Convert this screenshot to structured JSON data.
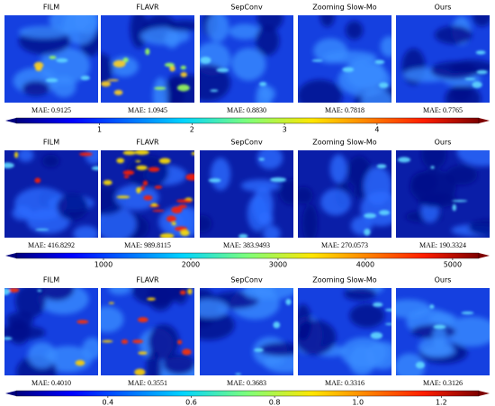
{
  "rows": [
    {
      "panels": [
        {
          "title": "FILM",
          "mae": "MAE: 0.9125"
        },
        {
          "title": "FLAVR",
          "mae": "MAE: 1.0945"
        },
        {
          "title": "SepConv",
          "mae": "MAE: 0.8830"
        },
        {
          "title": "Zooming Slow-Mo",
          "mae": "MAE: 0.7818"
        },
        {
          "title": "Ours",
          "mae": "MAE: 0.7765"
        }
      ],
      "colorbar": {
        "range": [
          0.1,
          5.1
        ],
        "ticks": [
          1,
          2,
          3,
          4
        ]
      }
    },
    {
      "panels": [
        {
          "title": "FILM",
          "mae": "MAE: 416.8292"
        },
        {
          "title": "FLAVR",
          "mae": "MAE: 989.8115"
        },
        {
          "title": "SepConv",
          "mae": "MAE: 383.9493"
        },
        {
          "title": "Zooming Slow-Mo",
          "mae": "MAE: 270.0573"
        },
        {
          "title": "Ours",
          "mae": "MAE: 190.3324"
        }
      ],
      "colorbar": {
        "range": [
          0,
          5300
        ],
        "ticks": [
          1000,
          2000,
          3000,
          4000,
          5000
        ]
      }
    },
    {
      "panels": [
        {
          "title": "FILM",
          "mae": "MAE: 0.4010"
        },
        {
          "title": "FLAVR",
          "mae": "MAE: 0.3551"
        },
        {
          "title": "SepConv",
          "mae": "MAE: 0.3683"
        },
        {
          "title": "Zooming Slow-Mo",
          "mae": "MAE: 0.3316"
        },
        {
          "title": "Ours",
          "mae": "MAE: 0.3126"
        }
      ],
      "colorbar": {
        "range": [
          0.18,
          1.29
        ],
        "ticks": [
          {
            "value": 0.4,
            "label": "0.4"
          },
          {
            "value": 0.6,
            "label": "0.6"
          },
          {
            "value": 0.8,
            "label": "0.8"
          },
          {
            "value": 1.0,
            "label": "1.0"
          },
          {
            "value": 1.2,
            "label": "1.2"
          }
        ]
      }
    }
  ]
}
